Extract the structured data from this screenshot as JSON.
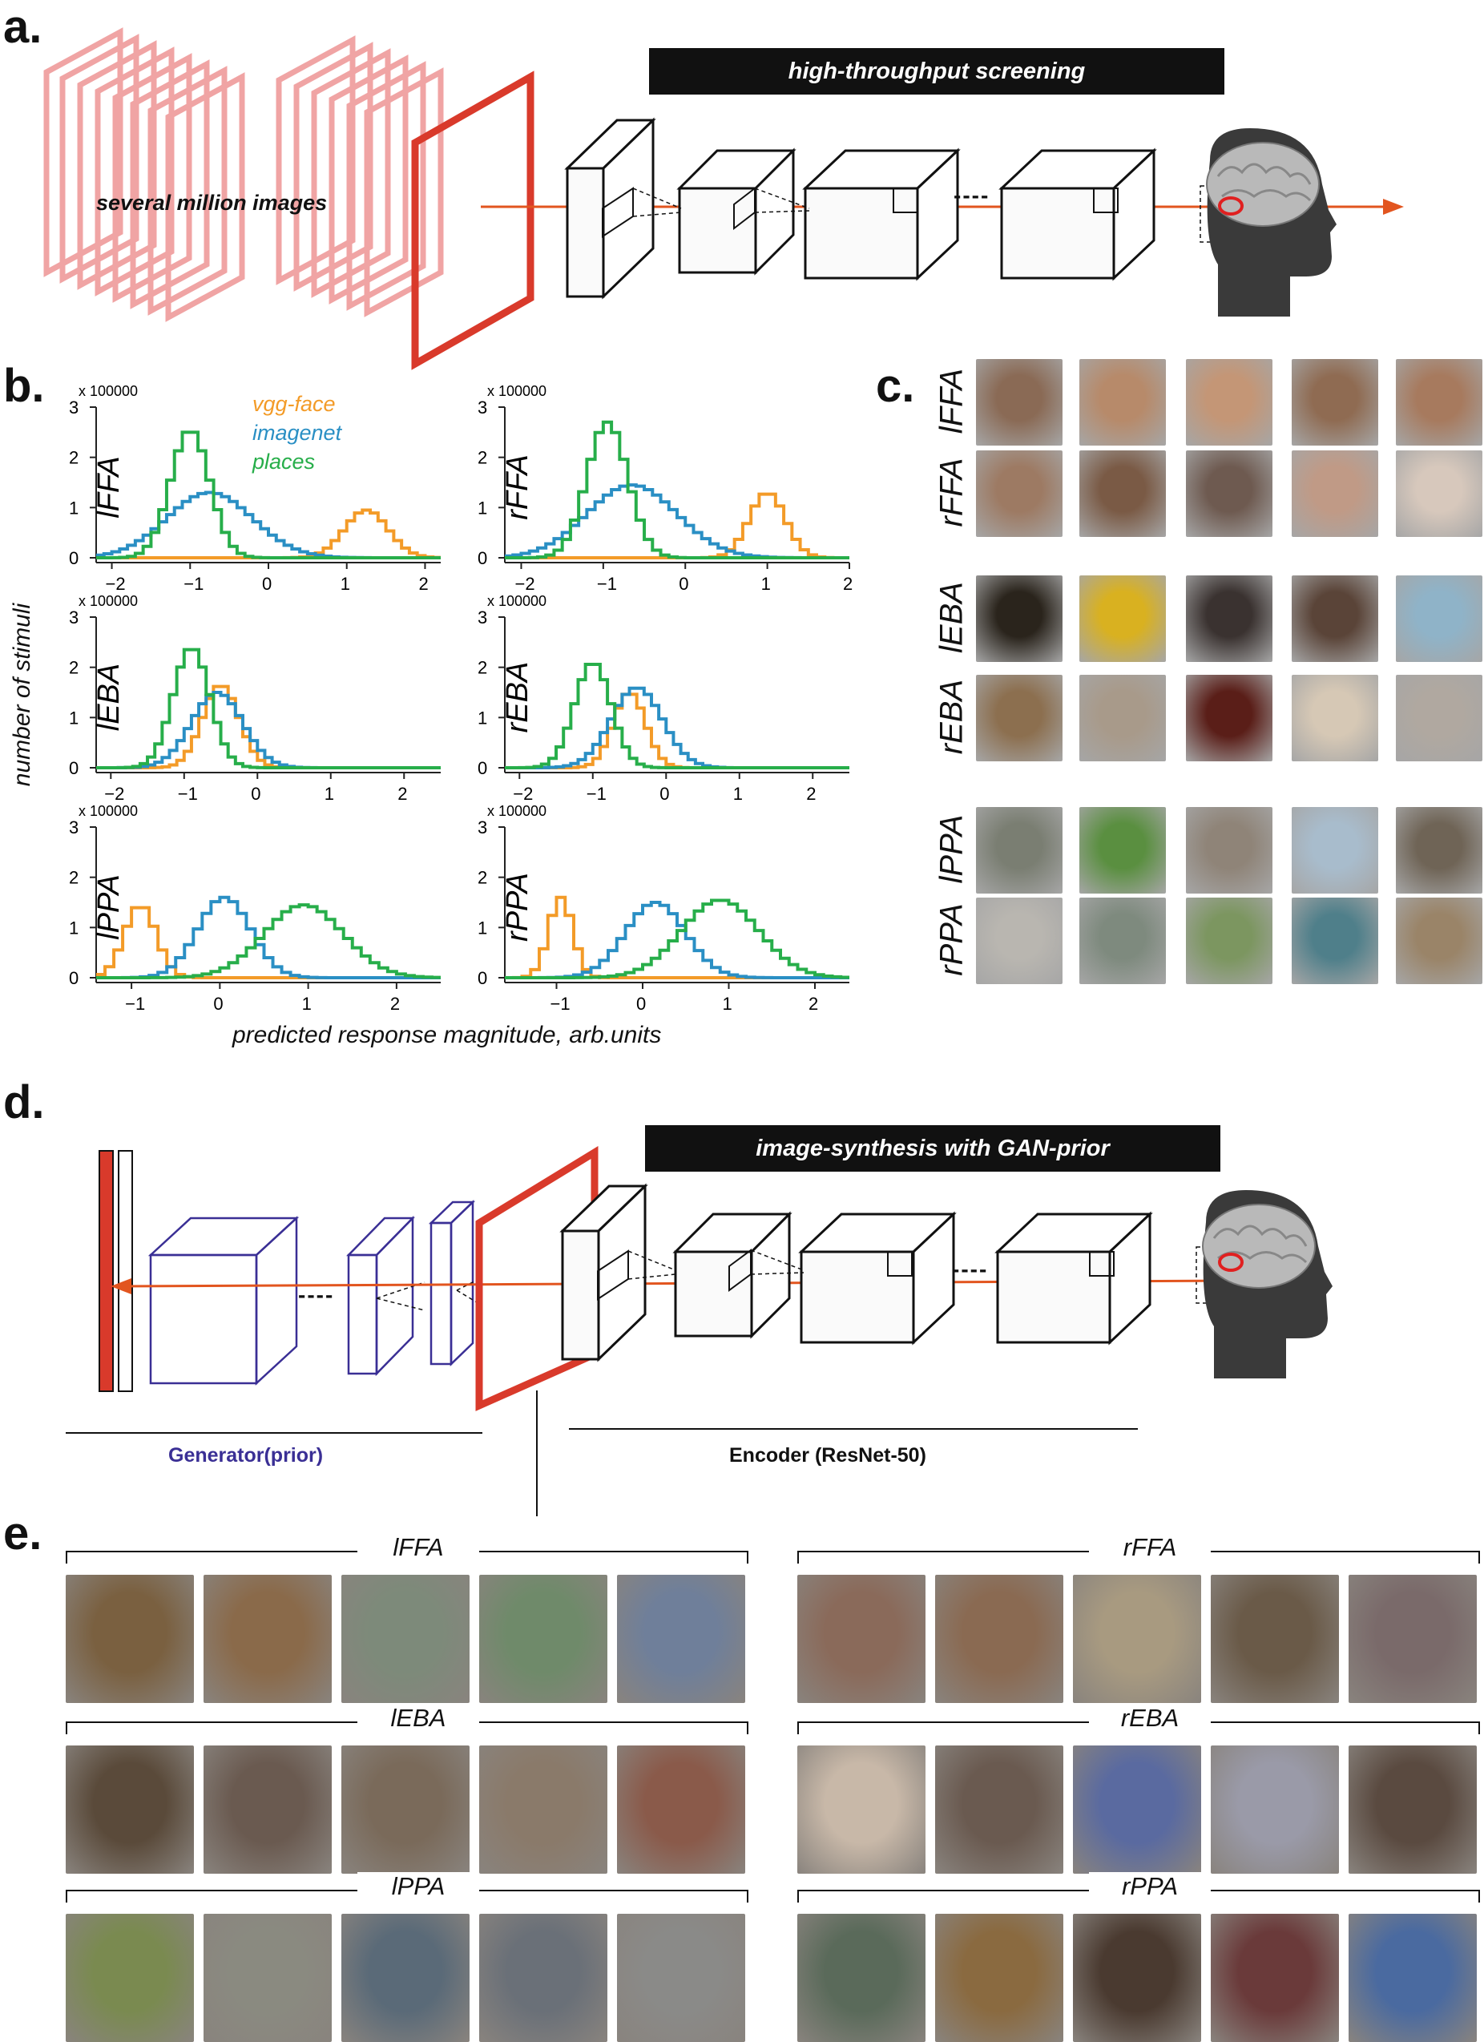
{
  "panel_a": {
    "label": "a.",
    "banner": "high-throughput screening",
    "stack_text": "several million images",
    "dashes": "----"
  },
  "panel_b": {
    "label": "b.",
    "ylabel": "number of stimuli",
    "xlabel": "predicted response magnitude, arb.units",
    "legend": [
      {
        "name": "vgg-face",
        "color": "#f39b28"
      },
      {
        "name": "imagenet",
        "color": "#2a8fc4"
      },
      {
        "name": "places",
        "color": "#27ae4a"
      }
    ]
  },
  "chart_data": [
    {
      "type": "line",
      "title": "lFFA",
      "scale_label": "x 100000",
      "ylim": [
        0,
        3
      ],
      "xlim": [
        -2.2,
        2.2
      ],
      "xticks": [
        "−2",
        "−1",
        "0",
        "1",
        "2"
      ],
      "xtick_values": [
        -2,
        -1,
        0,
        1,
        2
      ],
      "yticks": [
        "0",
        "1",
        "2",
        "3"
      ],
      "series": [
        {
          "name": "vgg-face",
          "peak": 1.25,
          "width": 0.28,
          "height": 0.95
        },
        {
          "name": "imagenet",
          "peak": -0.75,
          "width": 0.55,
          "height": 1.3
        },
        {
          "name": "places",
          "peak": -1.0,
          "width": 0.25,
          "height": 2.55
        }
      ]
    },
    {
      "type": "line",
      "title": "rFFA",
      "scale_label": "x 100000",
      "ylim": [
        0,
        3
      ],
      "xlim": [
        -2.2,
        2.0
      ],
      "xticks": [
        "−2",
        "−1",
        "0",
        "1",
        "2"
      ],
      "xtick_values": [
        -2,
        -1,
        0,
        1,
        2
      ],
      "yticks": [
        "0",
        "1",
        "2",
        "3"
      ],
      "series": [
        {
          "name": "vgg-face",
          "peak": 1.0,
          "width": 0.22,
          "height": 1.3
        },
        {
          "name": "imagenet",
          "peak": -0.65,
          "width": 0.55,
          "height": 1.45
        },
        {
          "name": "places",
          "peak": -0.95,
          "width": 0.25,
          "height": 2.7
        }
      ]
    },
    {
      "type": "line",
      "title": "lEBA",
      "scale_label": "x 100000",
      "ylim": [
        0,
        3
      ],
      "xlim": [
        -2.2,
        2.5
      ],
      "xticks": [
        "−2",
        "−1",
        "0",
        "1",
        "2"
      ],
      "xtick_values": [
        -2,
        -1,
        0,
        1,
        2
      ],
      "yticks": [
        "0",
        "1",
        "2",
        "3"
      ],
      "series": [
        {
          "name": "vgg-face",
          "peak": -0.5,
          "width": 0.25,
          "height": 1.65
        },
        {
          "name": "imagenet",
          "peak": -0.55,
          "width": 0.35,
          "height": 1.5
        },
        {
          "name": "places",
          "peak": -0.9,
          "width": 0.25,
          "height": 2.4
        }
      ]
    },
    {
      "type": "line",
      "title": "rEBA",
      "scale_label": "x 100000",
      "ylim": [
        0,
        3
      ],
      "xlim": [
        -2.2,
        2.5
      ],
      "xticks": [
        "−2",
        "−1",
        "0",
        "1",
        "2"
      ],
      "xtick_values": [
        -2,
        -1,
        0,
        1,
        2
      ],
      "yticks": [
        "0",
        "1",
        "2",
        "3"
      ],
      "series": [
        {
          "name": "vgg-face",
          "peak": -0.5,
          "width": 0.22,
          "height": 1.5
        },
        {
          "name": "imagenet",
          "peak": -0.4,
          "width": 0.35,
          "height": 1.6
        },
        {
          "name": "places",
          "peak": -1.0,
          "width": 0.25,
          "height": 2.1
        }
      ]
    },
    {
      "type": "line",
      "title": "lPPA",
      "scale_label": "x 100000",
      "ylim": [
        0,
        3
      ],
      "xlim": [
        -1.4,
        2.5
      ],
      "xticks": [
        "−1",
        "0",
        "1",
        "2"
      ],
      "xtick_values": [
        -1,
        0,
        1,
        2
      ],
      "yticks": [
        "0",
        "1",
        "2",
        "3"
      ],
      "series": [
        {
          "name": "vgg-face",
          "peak": -0.9,
          "width": 0.18,
          "height": 1.45
        },
        {
          "name": "imagenet",
          "peak": 0.05,
          "width": 0.3,
          "height": 1.6
        },
        {
          "name": "places",
          "peak": 0.95,
          "width": 0.45,
          "height": 1.45
        }
      ]
    },
    {
      "type": "line",
      "title": "rPPA",
      "scale_label": "x 100000",
      "ylim": [
        0,
        3
      ],
      "xlim": [
        -1.6,
        2.4
      ],
      "xticks": [
        "−1",
        "0",
        "1",
        "2"
      ],
      "xtick_values": [
        -1,
        0,
        1,
        2
      ],
      "yticks": [
        "0",
        "1",
        "2",
        "3"
      ],
      "series": [
        {
          "name": "vgg-face",
          "peak": -0.95,
          "width": 0.14,
          "height": 1.6
        },
        {
          "name": "imagenet",
          "peak": 0.15,
          "width": 0.35,
          "height": 1.5
        },
        {
          "name": "places",
          "peak": 0.9,
          "width": 0.45,
          "height": 1.55
        }
      ]
    }
  ],
  "panel_c": {
    "label": "c.",
    "rows": [
      "lFFA",
      "rFFA",
      "lEBA",
      "rEBA",
      "lPPA",
      "rPPA"
    ],
    "row_colors": [
      [
        "#8a6a55",
        "#b78a6a",
        "#c49676",
        "#8f6b52",
        "#a77a5e"
      ],
      [
        "#9d7a63",
        "#7a5a45",
        "#6e5a50",
        "#c09a86",
        "#d7c8bc"
      ],
      [
        "#2a241c",
        "#d9b120",
        "#3a3230",
        "#5a4438",
        "#8fb3c8"
      ],
      [
        "#8c6f4f",
        "#a89a8a",
        "#5a1e18",
        "#d6c8b5",
        "#b0a8a0"
      ],
      [
        "#7a7e72",
        "#5a8f40",
        "#8f8478",
        "#a8bccc",
        "#6f6456"
      ],
      [
        "#b9b6b0",
        "#7e8a7e",
        "#7c9660",
        "#4f7f8a",
        "#9a8468"
      ]
    ]
  },
  "panel_d": {
    "label": "d.",
    "banner": "image-synthesis with GAN-prior",
    "generator_label": "Generator(prior)",
    "encoder_label": "Encoder (ResNet-50)",
    "dashes": "----"
  },
  "panel_e": {
    "label": "e.",
    "groups": [
      {
        "title": "lFFA",
        "colors": [
          "#7a6040",
          "#8a6a4a",
          "#7d8a7a",
          "#6f8a6a",
          "#6f7f9a"
        ]
      },
      {
        "title": "rFFA",
        "colors": [
          "#8a6a5a",
          "#8a6a52",
          "#a89a80",
          "#6a5a48",
          "#7a6a6a"
        ]
      },
      {
        "title": "lEBA",
        "colors": [
          "#5a4a3a",
          "#6a5a50",
          "#7a6a5a",
          "#8a7a6a",
          "#8a5a4a"
        ]
      },
      {
        "title": "rEBA",
        "colors": [
          "#c8b8a8",
          "#6a5a50",
          "#5a6aa0",
          "#9a9aa8",
          "#5a4a40"
        ]
      },
      {
        "title": "lPPA",
        "colors": [
          "#7a8a50",
          "#8a8a80",
          "#5a6a78",
          "#6a7078",
          "#8a8a88"
        ]
      },
      {
        "title": "rPPA",
        "colors": [
          "#5a6a5a",
          "#8a6a40",
          "#4a3a30",
          "#6a3a3a",
          "#4a6aa0"
        ]
      }
    ]
  }
}
